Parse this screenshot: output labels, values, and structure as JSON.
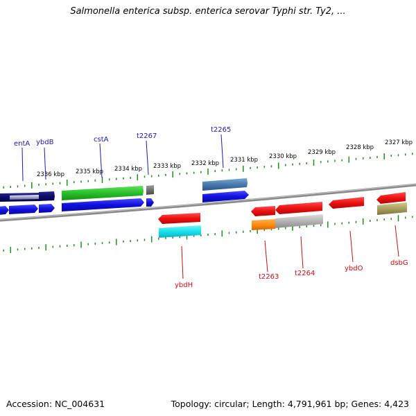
{
  "header": {
    "title": "Salmonella enterica subsp. enterica serovar Typhi str. Ty2, ..."
  },
  "footer": {
    "accession": "Accession: NC_004631",
    "summary": "Topology: circular; Length: 4,791,961 bp; Genes: 4,423"
  },
  "scale_labels": [
    "2336 kbp",
    "2335 kbp",
    "2334 kbp",
    "2333 kbp",
    "2332 kbp",
    "2331 kbp",
    "2330 kbp",
    "2329 kbp",
    "2328 kbp",
    "2327 kbp"
  ],
  "gene_labels": {
    "top": [
      "entA",
      "ybdB",
      "cstA",
      "t2267",
      "t2265"
    ],
    "bottom": [
      "ybdH",
      "t2263",
      "t2264",
      "ybdO",
      "dsbG"
    ]
  },
  "colors": {
    "backbone": "#8a8a8a",
    "ticks": "#1e8c1e",
    "forward_label": "#1a1aa8",
    "reverse_label": "#c21010",
    "blue": "#1414e6",
    "navy": "#101070",
    "green": "#2ec82e",
    "red": "#ee1010",
    "cyan": "#18e6f0",
    "orange": "#ff9010",
    "grey": "#b8b8b8",
    "steel": "#4a7ab0",
    "olive": "#a8a060"
  }
}
